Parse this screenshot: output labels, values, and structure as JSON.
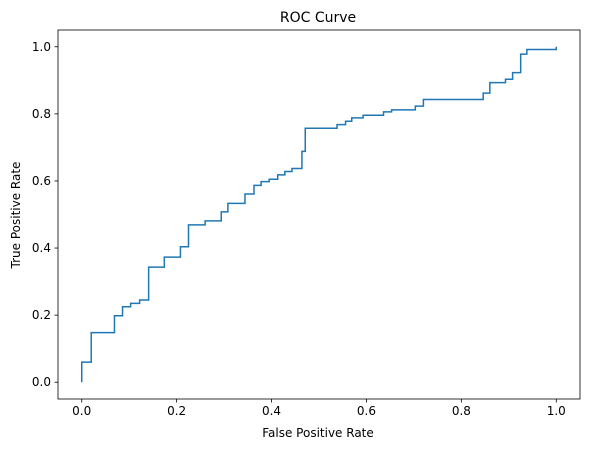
{
  "chart_data": {
    "type": "line",
    "title": "ROC Curve",
    "xlabel": "False Positive Rate",
    "ylabel": "True Positive Rate",
    "xlim": [
      -0.05,
      1.05
    ],
    "ylim": [
      -0.05,
      1.05
    ],
    "xticks": [
      0.0,
      0.2,
      0.4,
      0.6,
      0.8,
      1.0
    ],
    "yticks": [
      0.0,
      0.2,
      0.4,
      0.6,
      0.8,
      1.0
    ],
    "xtick_labels": [
      "0.0",
      "0.2",
      "0.4",
      "0.6",
      "0.8",
      "1.0"
    ],
    "ytick_labels": [
      "0.0",
      "0.2",
      "0.4",
      "0.6",
      "0.8",
      "1.0"
    ],
    "grid": false,
    "legend": false,
    "line_color": "#1f77b4",
    "series": [
      {
        "drawstyle": "steps-post",
        "x": [
          0.0,
          0.0,
          0.02,
          0.053,
          0.069,
          0.086,
          0.103,
          0.122,
          0.141,
          0.174,
          0.208,
          0.225,
          0.26,
          0.294,
          0.308,
          0.344,
          0.363,
          0.378,
          0.395,
          0.413,
          0.428,
          0.443,
          0.464,
          0.471,
          0.522,
          0.538,
          0.556,
          0.569,
          0.593,
          0.636,
          0.653,
          0.703,
          0.72,
          0.76,
          0.793,
          0.84,
          0.846,
          0.86,
          0.88,
          0.893,
          0.908,
          0.925,
          0.938,
          0.951,
          0.969,
          1.0
        ],
        "y": [
          0.0,
          0.06,
          0.148,
          0.148,
          0.198,
          0.225,
          0.235,
          0.245,
          0.343,
          0.373,
          0.404,
          0.469,
          0.481,
          0.508,
          0.533,
          0.561,
          0.587,
          0.598,
          0.605,
          0.618,
          0.628,
          0.637,
          0.688,
          0.757,
          0.757,
          0.768,
          0.778,
          0.788,
          0.796,
          0.806,
          0.812,
          0.823,
          0.843,
          0.843,
          0.843,
          0.843,
          0.862,
          0.893,
          0.893,
          0.903,
          0.923,
          0.978,
          0.992,
          0.992,
          0.992,
          1.0
        ]
      }
    ]
  }
}
